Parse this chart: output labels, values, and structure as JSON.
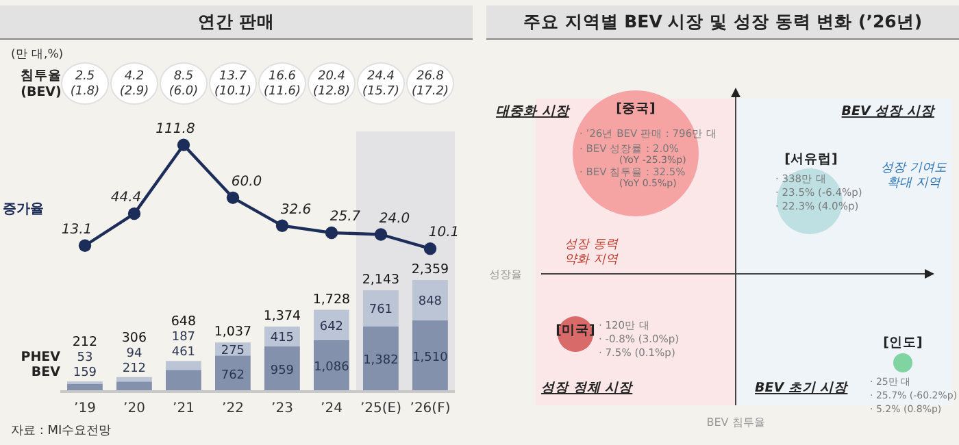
{
  "chart_data": [
    {
      "type": "bar",
      "title": "연간 판매",
      "ylabel": "(만 대,%)",
      "categories": [
        "’19",
        "’20",
        "’21",
        "’22",
        "’23",
        "’24",
        "’25(E)",
        "’26(F)"
      ],
      "stacked": true,
      "ylim": [
        0,
        5500
      ],
      "y2lim": [
        -130,
        125
      ],
      "marker": "circle",
      "series": [
        {
          "name": "BEV",
          "color": "#8391ad",
          "values": [
            159,
            212,
            461,
            762,
            959,
            1086,
            1382,
            1510
          ],
          "value_labels": [
            "159",
            "212",
            "461",
            "762",
            "959",
            "1,086",
            "1,382",
            "1,510"
          ]
        },
        {
          "name": "PHEV",
          "color": "#bcc5d6",
          "values": [
            53,
            94,
            187,
            275,
            415,
            642,
            761,
            848
          ],
          "value_labels": [
            "53",
            "94",
            "187",
            "275",
            "415",
            "642",
            "761",
            "848"
          ]
        },
        {
          "name": "증가율",
          "type": "line",
          "axis": "y2",
          "color": "#1c2d5a",
          "values": [
            13.1,
            44.4,
            111.8,
            60.0,
            32.6,
            25.7,
            24.0,
            10.1
          ],
          "value_labels": [
            "13.1",
            "44.4",
            "111.8",
            "60.0",
            "32.6",
            "25.7",
            "24.0",
            "10.1"
          ]
        }
      ],
      "totals": [
        "212",
        "306",
        "648",
        "1,037",
        "1,374",
        "1,728",
        "2,143",
        "2,359"
      ],
      "bands": [
        {
          "axis": "x",
          "from": "’25(E)",
          "to": "’26(F)",
          "color": "#e3e3e6"
        }
      ],
      "annotations": [
        "침투율\n(BEV)",
        "자료 : MI수요전망",
        "2.5\n(1.8)",
        "4.2\n(2.9)",
        "8.5\n(6.0)",
        "13.7\n(10.1)",
        "16.6\n(11.6)",
        "20.4\n(12.8)",
        "24.4\n(15.7)",
        "26.8\n(17.2)"
      ]
    },
    {
      "type": "other",
      "title": "주요 지역별 BEV 시장 및 성장 동력 변화 (’26년)",
      "xlabel": "BEV 침투율",
      "ylabel": "성장율",
      "annotations": [
        "대중화 시장",
        "BEV 성장 시장",
        "성장 정체 시장",
        "BEV 초기 시장",
        "성장 동력\n약화 지역",
        "성장 기여도\n확대 지역",
        "[중국]",
        "· ’26년 BEV 판매 : 796만 대",
        "· BEV 성장률 : 2.0%",
        "(YoY -25.3%p)",
        "· BEV 침투율 : 32.5%",
        "(YoY 0.5%p)",
        "[서유럽]",
        "· 338만 대",
        "· 23.5% (-6.4%p)",
        "· 22.3% (4.0%p)",
        "[미국]",
        "· 120만 대",
        "· -0.8% (3.0%p)",
        "· 7.5% (0.1%p)",
        "[인도]",
        "· 25만 대",
        "· 25.7% (-60.2%p)",
        "· 5.2% (0.8%p)"
      ]
    }
  ]
}
